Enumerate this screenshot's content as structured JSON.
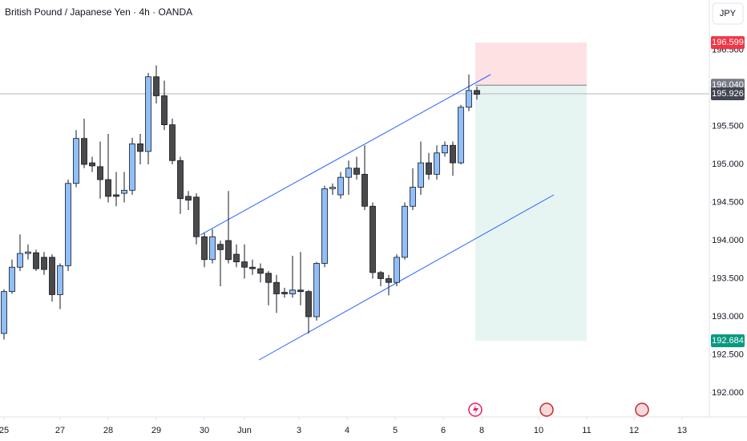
{
  "chart_data": {
    "type": "candlestick",
    "title": "British Pound / Japanese Yen · 4h · OANDA",
    "currency": "JPY",
    "up_color": "#90bff9",
    "down_color": "#4a4a4a",
    "open": [
      192.78,
      193.33,
      193.65,
      193.83,
      193.84,
      193.78,
      193.78,
      193.29,
      193.67,
      194.75,
      195.34,
      195.02,
      194.97,
      194.8,
      194.6,
      194.62,
      194.66,
      195.27,
      195.17,
      196.15,
      195.9,
      195.52,
      195.05,
      194.58,
      194.57,
      194.05,
      193.75,
      193.95,
      194.0,
      193.82,
      193.72,
      193.65,
      193.63,
      193.57,
      193.45,
      193.32,
      193.3,
      193.35,
      193.33,
      193.0,
      193.7,
      194.68,
      194.6,
      194.83,
      194.95,
      194.87,
      194.45,
      193.58,
      193.5,
      193.45,
      193.78,
      194.45,
      194.7,
      195.02,
      194.87,
      195.15,
      195.25,
      195.02,
      195.75,
      195.97
    ],
    "high": [
      193.36,
      193.75,
      194.08,
      193.95,
      193.88,
      193.85,
      193.82,
      193.7,
      194.8,
      195.45,
      195.6,
      195.1,
      195.3,
      195.4,
      194.9,
      194.9,
      195.35,
      195.4,
      196.2,
      196.3,
      196.1,
      195.6,
      195.1,
      194.65,
      194.62,
      194.1,
      194.15,
      194.0,
      194.65,
      193.95,
      193.95,
      193.75,
      193.7,
      193.6,
      193.55,
      193.38,
      193.8,
      193.85,
      193.35,
      193.72,
      194.72,
      194.75,
      194.9,
      195.05,
      195.1,
      195.25,
      194.5,
      193.6,
      193.55,
      193.82,
      194.5,
      194.95,
      195.3,
      195.15,
      195.25,
      195.3,
      195.3,
      195.78,
      196.18,
      196.02
    ],
    "low": [
      192.7,
      193.3,
      193.6,
      193.75,
      193.6,
      193.55,
      193.2,
      193.1,
      193.6,
      194.7,
      194.95,
      194.9,
      194.55,
      194.5,
      194.45,
      194.5,
      194.6,
      195.0,
      195.0,
      195.8,
      195.45,
      195.0,
      194.35,
      194.4,
      193.95,
      193.65,
      193.7,
      193.4,
      193.7,
      193.65,
      193.5,
      193.55,
      193.45,
      193.15,
      193.05,
      193.25,
      193.25,
      193.15,
      192.78,
      192.95,
      193.65,
      194.6,
      194.55,
      194.6,
      194.8,
      194.4,
      193.5,
      193.4,
      193.28,
      193.4,
      193.75,
      194.4,
      194.6,
      194.8,
      194.8,
      195.1,
      194.85,
      195.0,
      195.7,
      195.85
    ],
    "close": [
      193.33,
      193.65,
      193.83,
      193.85,
      193.63,
      193.62,
      193.29,
      193.67,
      194.75,
      195.34,
      195.0,
      194.98,
      194.8,
      194.58,
      194.58,
      194.66,
      195.27,
      195.17,
      196.15,
      195.9,
      195.52,
      195.05,
      194.55,
      194.53,
      194.05,
      193.75,
      194.05,
      193.88,
      193.75,
      193.72,
      193.65,
      193.63,
      193.57,
      193.45,
      193.3,
      193.3,
      193.35,
      193.33,
      193.0,
      193.7,
      194.68,
      194.7,
      194.83,
      194.95,
      194.87,
      194.45,
      193.58,
      193.5,
      193.45,
      193.78,
      194.45,
      194.7,
      195.02,
      194.87,
      195.15,
      195.25,
      195.02,
      195.75,
      195.97,
      195.92
    ],
    "xlim": [
      -0.5,
      88.0
    ],
    "xticks": [
      {
        "value": 0,
        "label": "25"
      },
      {
        "value": 7,
        "label": "27"
      },
      {
        "value": 13,
        "label": "28"
      },
      {
        "value": 19,
        "label": "29"
      },
      {
        "value": 25,
        "label": "30"
      },
      {
        "value": 30,
        "label": "Jun"
      },
      {
        "value": 36.8,
        "label": "3"
      },
      {
        "value": 42.8,
        "label": "4"
      },
      {
        "value": 48.8,
        "label": "5"
      },
      {
        "value": 54.8,
        "label": "6"
      },
      {
        "value": 59.6,
        "label": "8"
      },
      {
        "value": 66.7,
        "label": "10"
      },
      {
        "value": 72.7,
        "label": "11"
      },
      {
        "value": 78.6,
        "label": "12"
      },
      {
        "value": 84.6,
        "label": "13"
      }
    ],
    "ylim": [
      191.684,
      197.158
    ],
    "yticks": [
      {
        "value": 192,
        "label": "192.000"
      },
      {
        "value": 192.5,
        "label": "192.500"
      },
      {
        "value": 193,
        "label": "193.000"
      },
      {
        "value": 193.5,
        "label": "193.500"
      },
      {
        "value": 194,
        "label": "194.000"
      },
      {
        "value": 194.5,
        "label": "194.500"
      },
      {
        "value": 195,
        "label": "195.000"
      },
      {
        "value": 195.5,
        "label": "195.500"
      },
      {
        "value": 196,
        "label": "196.000"
      },
      {
        "value": 196.5,
        "label": "196.500"
      }
    ],
    "price_labels": [
      {
        "value": 196.599,
        "label": "196.599",
        "color": "#f23645"
      },
      {
        "value": 196.04,
        "label": "196.040",
        "color": "#787b86"
      },
      {
        "value": 195.926,
        "label": "195.926",
        "color": "#434651"
      },
      {
        "value": 192.684,
        "label": "192.684",
        "color": "#089981"
      }
    ]
  }
}
